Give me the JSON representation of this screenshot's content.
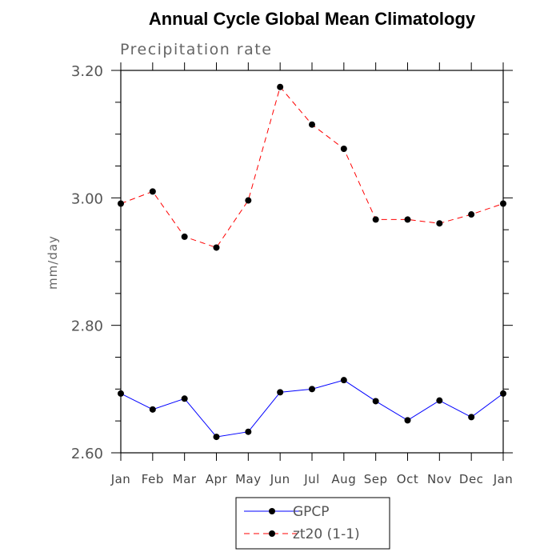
{
  "chart_data": {
    "type": "line",
    "title": "Annual Cycle Global Mean Climatology",
    "subtitle": "Precipitation rate",
    "xlabel": "",
    "ylabel": "mm/day",
    "ylim": [
      2.6,
      3.2
    ],
    "yticks": [
      "2.60",
      "2.80",
      "3.00",
      "3.20"
    ],
    "categories": [
      "Jan",
      "Feb",
      "Mar",
      "Apr",
      "May",
      "Jun",
      "Jul",
      "Aug",
      "Sep",
      "Oct",
      "Nov",
      "Dec",
      "Jan"
    ],
    "grid": false,
    "legend_position": "bottom-center",
    "series": [
      {
        "name": "GPCP",
        "color": "#0000ff",
        "dash": "solid",
        "marker": "filled-circle",
        "values": [
          2.693,
          2.668,
          2.685,
          2.625,
          2.633,
          2.695,
          2.7,
          2.714,
          2.681,
          2.651,
          2.682,
          2.656,
          2.693
        ]
      },
      {
        "name": "zt20 (1-1)",
        "color": "#ff0000",
        "dash": "dashed",
        "marker": "filled-circle",
        "values": [
          2.991,
          3.01,
          2.939,
          2.922,
          2.996,
          3.174,
          3.115,
          3.077,
          2.966,
          2.966,
          2.96,
          2.974,
          2.991
        ]
      }
    ]
  }
}
